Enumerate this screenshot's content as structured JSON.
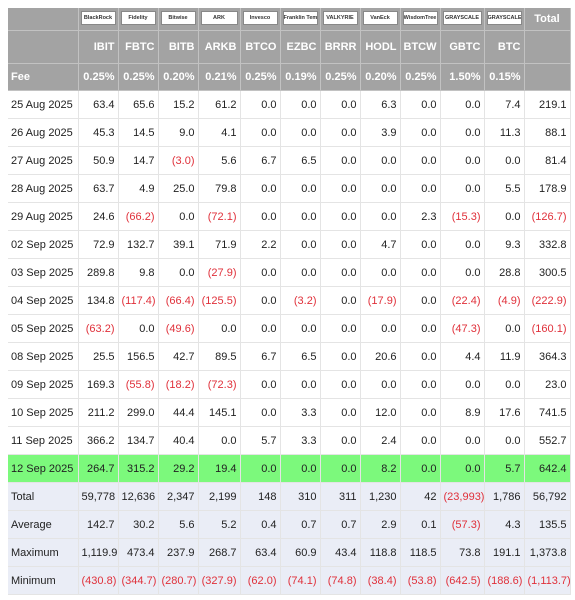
{
  "header": {
    "logos": [
      "BlackRock",
      "Fidelity",
      "Bitwise",
      "ARK",
      "Invesco",
      "Franklin Templeton",
      "VALKYRIE",
      "VanEck",
      "WisdomTree",
      "GRAYSCALE",
      "GRAYSCALE"
    ],
    "total_label": "Total",
    "tickers": [
      "IBIT",
      "FBTC",
      "BITB",
      "ARKB",
      "BTCO",
      "EZBC",
      "BRRR",
      "HODL",
      "BTCW",
      "GBTC",
      "BTC"
    ],
    "fee_label": "Fee",
    "fees": [
      "0.25%",
      "0.25%",
      "0.20%",
      "0.21%",
      "0.25%",
      "0.19%",
      "0.25%",
      "0.20%",
      "0.25%",
      "1.50%",
      "0.15%"
    ]
  },
  "rows": [
    {
      "label": "25 Aug 2025",
      "values": [
        "63.4",
        "65.6",
        "15.2",
        "61.2",
        "0.0",
        "0.0",
        "0.0",
        "6.3",
        "0.0",
        "0.0",
        "7.4",
        "219.1"
      ]
    },
    {
      "label": "26 Aug 2025",
      "values": [
        "45.3",
        "14.5",
        "9.0",
        "4.1",
        "0.0",
        "0.0",
        "0.0",
        "3.9",
        "0.0",
        "0.0",
        "11.3",
        "88.1"
      ]
    },
    {
      "label": "27 Aug 2025",
      "values": [
        "50.9",
        "14.7",
        "(3.0)",
        "5.6",
        "6.7",
        "6.5",
        "0.0",
        "0.0",
        "0.0",
        "0.0",
        "0.0",
        "81.4"
      ]
    },
    {
      "label": "28 Aug 2025",
      "values": [
        "63.7",
        "4.9",
        "25.0",
        "79.8",
        "0.0",
        "0.0",
        "0.0",
        "0.0",
        "0.0",
        "0.0",
        "5.5",
        "178.9"
      ]
    },
    {
      "label": "29 Aug 2025",
      "values": [
        "24.6",
        "(66.2)",
        "0.0",
        "(72.1)",
        "0.0",
        "0.0",
        "0.0",
        "0.0",
        "2.3",
        "(15.3)",
        "0.0",
        "(126.7)"
      ]
    },
    {
      "label": "02 Sep 2025",
      "values": [
        "72.9",
        "132.7",
        "39.1",
        "71.9",
        "2.2",
        "0.0",
        "0.0",
        "4.7",
        "0.0",
        "0.0",
        "9.3",
        "332.8"
      ]
    },
    {
      "label": "03 Sep 2025",
      "values": [
        "289.8",
        "9.8",
        "0.0",
        "(27.9)",
        "0.0",
        "0.0",
        "0.0",
        "0.0",
        "0.0",
        "0.0",
        "28.8",
        "300.5"
      ]
    },
    {
      "label": "04 Sep 2025",
      "values": [
        "134.8",
        "(117.4)",
        "(66.4)",
        "(125.5)",
        "0.0",
        "(3.2)",
        "0.0",
        "(17.9)",
        "0.0",
        "(22.4)",
        "(4.9)",
        "(222.9)"
      ]
    },
    {
      "label": "05 Sep 2025",
      "values": [
        "(63.2)",
        "0.0",
        "(49.6)",
        "0.0",
        "0.0",
        "0.0",
        "0.0",
        "0.0",
        "0.0",
        "(47.3)",
        "0.0",
        "(160.1)"
      ]
    },
    {
      "label": "08 Sep 2025",
      "values": [
        "25.5",
        "156.5",
        "42.7",
        "89.5",
        "6.7",
        "6.5",
        "0.0",
        "20.6",
        "0.0",
        "4.4",
        "11.9",
        "364.3"
      ]
    },
    {
      "label": "09 Sep 2025",
      "values": [
        "169.3",
        "(55.8)",
        "(18.2)",
        "(72.3)",
        "0.0",
        "0.0",
        "0.0",
        "0.0",
        "0.0",
        "0.0",
        "0.0",
        "23.0"
      ]
    },
    {
      "label": "10 Sep 2025",
      "values": [
        "211.2",
        "299.0",
        "44.4",
        "145.1",
        "0.0",
        "3.3",
        "0.0",
        "12.0",
        "0.0",
        "8.9",
        "17.6",
        "741.5"
      ]
    },
    {
      "label": "11 Sep 2025",
      "values": [
        "366.2",
        "134.7",
        "40.4",
        "0.0",
        "5.7",
        "3.3",
        "0.0",
        "2.4",
        "0.0",
        "0.0",
        "0.0",
        "552.7"
      ]
    },
    {
      "label": "12 Sep 2025",
      "values": [
        "264.7",
        "315.2",
        "29.2",
        "19.4",
        "0.0",
        "0.0",
        "0.0",
        "8.2",
        "0.0",
        "0.0",
        "5.7",
        "642.4"
      ]
    }
  ],
  "summary": [
    {
      "label": "Total",
      "values": [
        "59,778",
        "12,636",
        "2,347",
        "2,199",
        "148",
        "310",
        "311",
        "1,230",
        "42",
        "(23,993)",
        "1,786",
        "56,792"
      ]
    },
    {
      "label": "Average",
      "values": [
        "142.7",
        "30.2",
        "5.6",
        "5.2",
        "0.4",
        "0.7",
        "0.7",
        "2.9",
        "0.1",
        "(57.3)",
        "4.3",
        "135.5"
      ]
    },
    {
      "label": "Maximum",
      "values": [
        "1,119.9",
        "473.4",
        "237.9",
        "268.7",
        "63.4",
        "60.9",
        "43.4",
        "118.8",
        "118.5",
        "73.8",
        "191.1",
        "1,373.8"
      ]
    },
    {
      "label": "Minimum",
      "values": [
        "(430.8)",
        "(344.7)",
        "(280.7)",
        "(327.9)",
        "(62.0)",
        "(74.1)",
        "(74.8)",
        "(38.4)",
        "(53.8)",
        "(642.5)",
        "(188.6)",
        "(1,113.7)"
      ]
    }
  ]
}
